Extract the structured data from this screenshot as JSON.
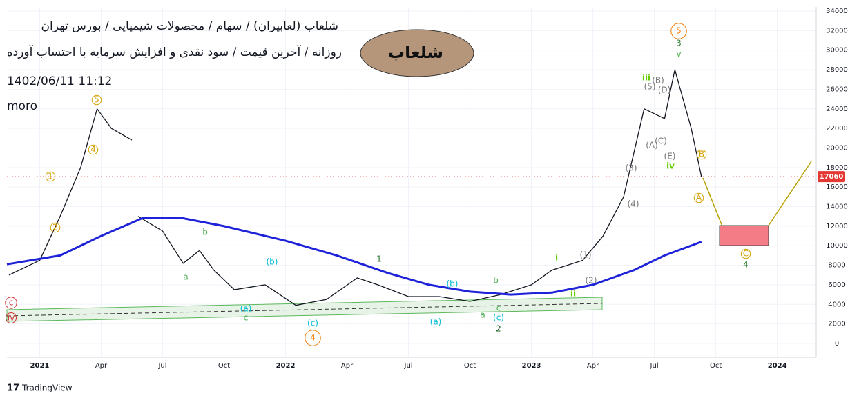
{
  "header": {
    "line1": "شلعاب (لعابیران) / سهام / محصولات شیمیایی / بورس تهران",
    "line2": "روزانه / آخرین قیمت / سود نقدی و افزایش سرمایه با احتساب آورده",
    "date": "1402/06/11 11:12",
    "author": "moro",
    "badge": "شلعاب",
    "brand": "TradingView"
  },
  "chart_data": {
    "type": "line",
    "series": [
      {
        "color": "#131722",
        "x": [
          -1.5,
          0,
          1,
          2,
          2.8,
          3.5,
          4.5,
          null,
          4.8,
          6,
          7,
          7.8,
          8.5,
          9.5,
          11,
          12.5,
          14,
          15.5,
          16.5,
          18,
          19.5,
          21,
          22.5,
          24,
          25,
          26.5,
          27.5,
          28.5,
          29.5,
          30.5,
          31,
          31.8,
          32.3
        ],
        "values": [
          7000,
          8500,
          13000,
          18000,
          24000,
          22000,
          20800,
          null,
          13000,
          11500,
          8200,
          9500,
          7500,
          5500,
          6000,
          3900,
          4500,
          6700,
          6000,
          4800,
          4800,
          4300,
          5000,
          6000,
          7500,
          8500,
          11000,
          15000,
          24000,
          23000,
          28000,
          22000,
          17060
        ]
      },
      {
        "color": "#1e22d8",
        "x": [
          -1.6,
          1,
          3,
          5,
          7,
          9,
          12,
          14.5,
          17,
          19,
          21,
          23,
          25,
          27,
          29,
          30.5,
          32.3
        ],
        "values": [
          8100,
          9000,
          11000,
          12800,
          12800,
          12000,
          10500,
          9000,
          7200,
          6000,
          5300,
          5000,
          5200,
          6000,
          7500,
          9000,
          10400
        ]
      }
    ],
    "last_price": 17060,
    "xlim": [
      -1.6,
      37.9
    ],
    "xticks": [
      {
        "value": 0,
        "label": "2021"
      },
      {
        "value": 3,
        "label": "Apr"
      },
      {
        "value": 6,
        "label": "Jul"
      },
      {
        "value": 9,
        "label": "Oct"
      },
      {
        "value": 12,
        "label": "2022"
      },
      {
        "value": 15,
        "label": "Apr"
      },
      {
        "value": 18,
        "label": "Jul"
      },
      {
        "value": 21,
        "label": "Oct"
      },
      {
        "value": 24,
        "label": "2023"
      },
      {
        "value": 27,
        "label": "Apr"
      },
      {
        "value": 30,
        "label": "Jul"
      },
      {
        "value": 33,
        "label": "Oct"
      },
      {
        "value": 36,
        "label": "2024"
      }
    ],
    "ylim": [
      0,
      34000
    ],
    "yticks": [
      0,
      2000,
      4000,
      6000,
      8000,
      10000,
      12000,
      14000,
      16000,
      18000,
      20000,
      22000,
      24000,
      26000,
      28000,
      30000,
      32000,
      34000
    ],
    "grid": true,
    "annotations": [
      "5",
      "3",
      "v",
      "iii",
      "iv",
      "4",
      "2",
      "1",
      "b",
      "a",
      "c",
      "(b)",
      "(a)",
      "(c)",
      "(b)",
      "(a)",
      "(c)",
      "b",
      "a",
      "c",
      "i",
      "ii",
      "4",
      "A",
      "B",
      "C",
      "1",
      "2",
      "4",
      "5",
      "(1)",
      "(2)",
      "(3)",
      "(4)",
      "(5)",
      "(A)",
      "(B)",
      "(C)",
      "(D)",
      "(E)",
      "c",
      "iv"
    ]
  }
}
